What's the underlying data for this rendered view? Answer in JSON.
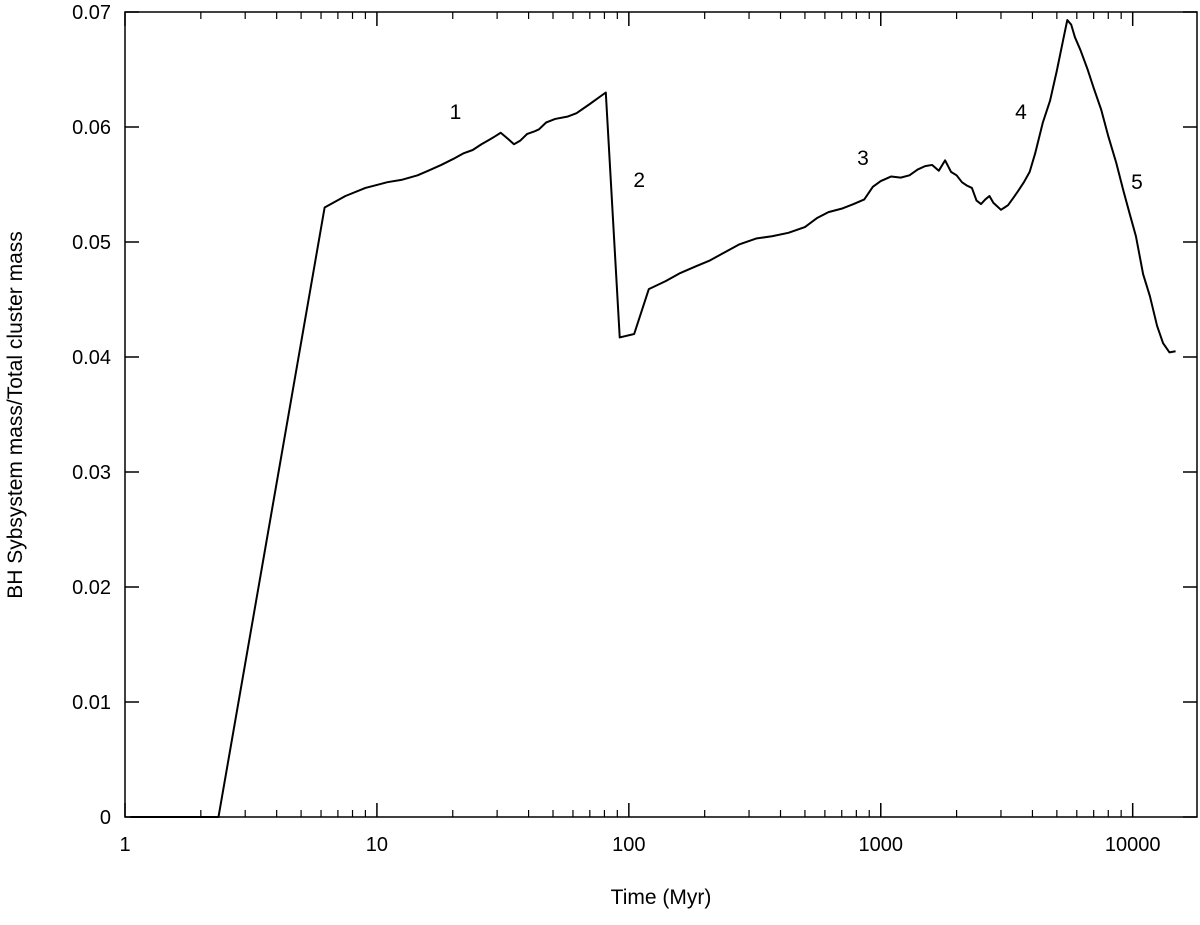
{
  "chart_data": {
    "type": "line",
    "title": "",
    "xlabel": "Time (Myr)",
    "ylabel": "BH Sybsystem mass/Total cluster mass",
    "xscale": "log",
    "xlim": [
      1,
      18000
    ],
    "ylim": [
      0,
      0.07
    ],
    "xticks": [
      1,
      10,
      100,
      1000,
      10000
    ],
    "xtick_labels": [
      "1",
      "10",
      "100",
      "1000",
      "10000"
    ],
    "yticks": [
      0,
      0.01,
      0.02,
      0.03,
      0.04,
      0.05,
      0.06,
      0.07
    ],
    "ytick_labels": [
      "0",
      "0.01",
      "0.02",
      "0.03",
      "0.04",
      "0.05",
      "0.06",
      "0.07"
    ],
    "grid": false,
    "legend": "none",
    "line_color": "#000000",
    "series": [
      {
        "x": [
          1.05,
          2.1,
          2.35,
          6.2,
          7.5,
          9,
          11,
          12.5,
          14.5,
          16,
          18,
          20,
          22,
          24,
          26,
          28,
          29.5,
          31,
          33,
          35,
          37,
          39.5,
          42,
          44,
          47,
          51,
          57,
          62,
          70,
          81,
          92,
          105,
          120,
          140,
          160,
          185,
          210,
          240,
          275,
          320,
          370,
          430,
          500,
          560,
          620,
          700,
          780,
          860,
          930,
          1000,
          1100,
          1200,
          1300,
          1400,
          1500,
          1600,
          1700,
          1800,
          1900,
          2000,
          2100,
          2200,
          2300,
          2400,
          2500,
          2600,
          2700,
          2800,
          2900,
          3000,
          3100,
          3200,
          3350,
          3500,
          3700,
          3900,
          4100,
          4400,
          4700,
          5000,
          5300,
          5500,
          5700,
          5900,
          6200,
          6600,
          7000,
          7500,
          8000,
          8600,
          9200,
          9800,
          10300,
          11000,
          11700,
          12500,
          13200,
          14000,
          14800
        ],
        "y": [
          0,
          0,
          0,
          0.053,
          0.054,
          0.0547,
          0.0552,
          0.0554,
          0.0558,
          0.0562,
          0.0567,
          0.0572,
          0.0577,
          0.058,
          0.0585,
          0.0589,
          0.0592,
          0.0595,
          0.059,
          0.0585,
          0.0588,
          0.0594,
          0.0596,
          0.0598,
          0.0604,
          0.0607,
          0.0609,
          0.0612,
          0.062,
          0.063,
          0.0417,
          0.042,
          0.0459,
          0.0466,
          0.0473,
          0.0479,
          0.0484,
          0.0491,
          0.0498,
          0.0503,
          0.0505,
          0.0508,
          0.0513,
          0.0521,
          0.0526,
          0.0529,
          0.0533,
          0.0537,
          0.0548,
          0.0553,
          0.0557,
          0.0556,
          0.0558,
          0.0563,
          0.0566,
          0.0567,
          0.0562,
          0.0571,
          0.0561,
          0.0558,
          0.0552,
          0.0549,
          0.0547,
          0.0536,
          0.0533,
          0.0537,
          0.054,
          0.0534,
          0.0531,
          0.0528,
          0.053,
          0.0532,
          0.0538,
          0.0544,
          0.0552,
          0.0561,
          0.0577,
          0.0604,
          0.0623,
          0.0649,
          0.0676,
          0.0693,
          0.0689,
          0.0678,
          0.0667,
          0.0651,
          0.0634,
          0.0615,
          0.0592,
          0.0569,
          0.0544,
          0.0522,
          0.0505,
          0.0472,
          0.0453,
          0.0427,
          0.0412,
          0.0404,
          0.0405
        ]
      }
    ],
    "annotations": [
      {
        "text": "1",
        "x": 20.5,
        "y": 0.0607
      },
      {
        "text": "2",
        "x": 110,
        "y": 0.0548
      },
      {
        "text": "3",
        "x": 850,
        "y": 0.0567
      },
      {
        "text": "4",
        "x": 3600,
        "y": 0.0607
      },
      {
        "text": "5",
        "x": 10400,
        "y": 0.0546
      }
    ]
  }
}
